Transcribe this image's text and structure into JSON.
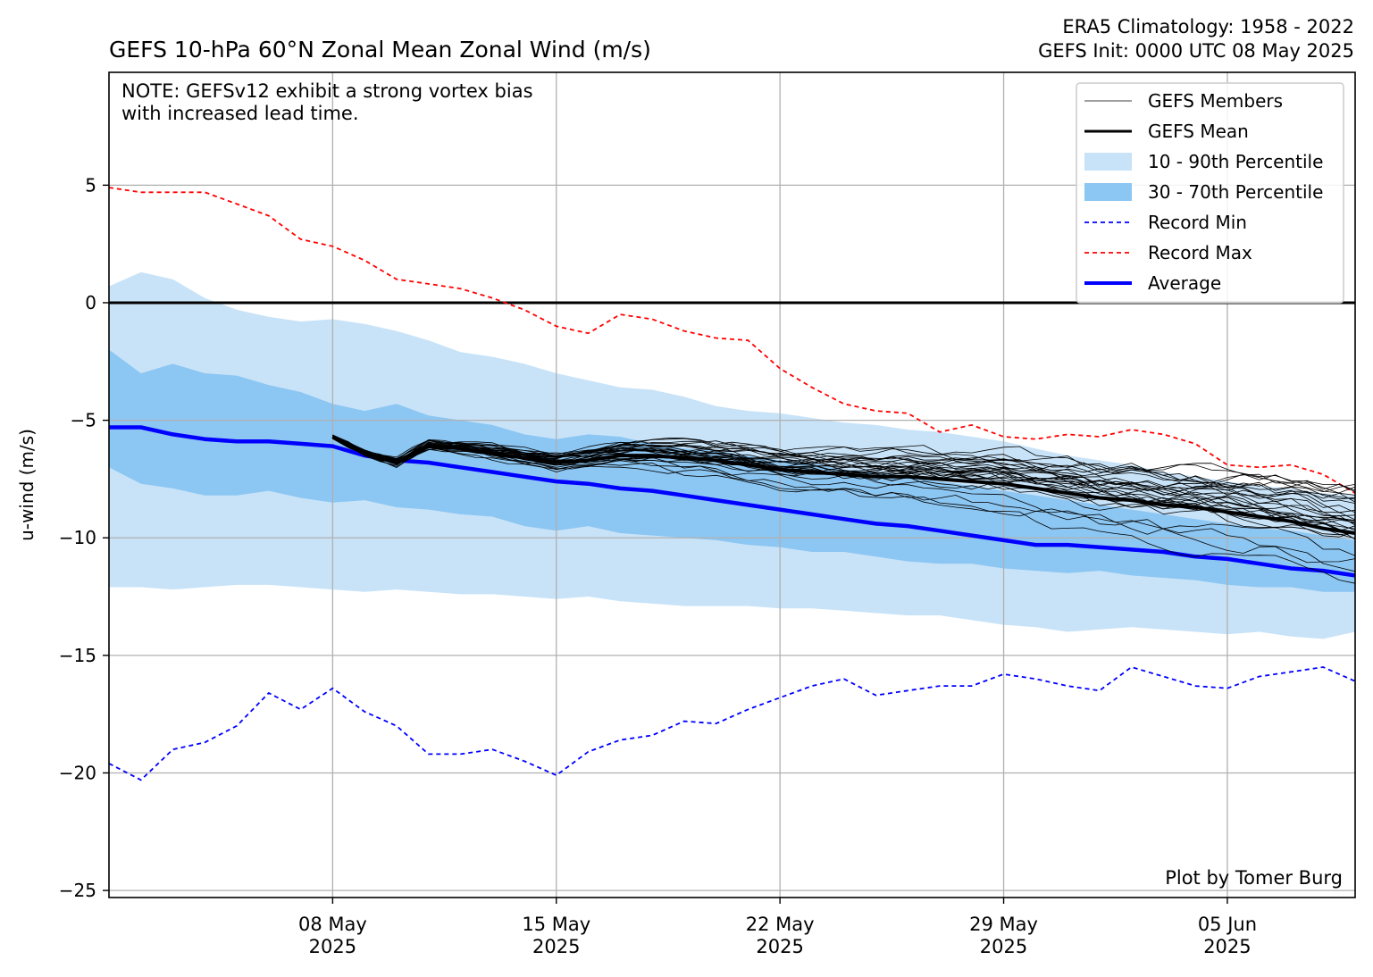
{
  "header": {
    "title": "GEFS 10-hPa 60°N Zonal Mean Zonal Wind (m/s)",
    "climatology": "ERA5 Climatology: 1958 - 2022",
    "init": "GEFS Init: 0000 UTC 08 May 2025"
  },
  "note": {
    "line1": "NOTE: GEFSv12 exhibit a strong vortex bias",
    "line2": "with increased lead time."
  },
  "credit": "Plot by Tomer Burg",
  "chart_data": {
    "type": "line",
    "ylabel": "u-wind (m/s)",
    "xlabel": "",
    "x_start": "2025-05-01",
    "x_end": "2025-06-09",
    "ylim": [
      -25.3,
      9.8
    ],
    "yticks": [
      5,
      0,
      -5,
      -10,
      -15,
      -20,
      -25
    ],
    "ytick_labels": [
      "5",
      "0",
      "−5",
      "−10",
      "−15",
      "−20",
      "−25"
    ],
    "xticks": [
      {
        "date": "2025-05-08",
        "line1": "08 May",
        "line2": "2025"
      },
      {
        "date": "2025-05-15",
        "line1": "15 May",
        "line2": "2025"
      },
      {
        "date": "2025-05-22",
        "line1": "22 May",
        "line2": "2025"
      },
      {
        "date": "2025-05-29",
        "line1": "29 May",
        "line2": "2025"
      },
      {
        "date": "2025-06-05",
        "line1": "05 Jun",
        "line2": "2025"
      }
    ],
    "grid": true,
    "zero_line": 0,
    "legend_position": "top-right",
    "legend": [
      {
        "label": "GEFS Members",
        "kind": "line",
        "color": "#000000",
        "width": 0.8,
        "dash": ""
      },
      {
        "label": "GEFS Mean",
        "kind": "line",
        "color": "#000000",
        "width": 3,
        "dash": ""
      },
      {
        "label": "10 - 90th Percentile",
        "kind": "patch",
        "color": "#c8e3f8"
      },
      {
        "label": "30 - 70th Percentile",
        "kind": "patch",
        "color": "#8cc6f2"
      },
      {
        "label": "Record Min",
        "kind": "line",
        "color": "#0000ff",
        "width": 1.8,
        "dash": "5,4"
      },
      {
        "label": "Record Max",
        "kind": "line",
        "color": "#ff0000",
        "width": 1.8,
        "dash": "5,4"
      },
      {
        "label": "Average",
        "kind": "line",
        "color": "#0000ff",
        "width": 4,
        "dash": ""
      }
    ],
    "colors": {
      "p10_90": "#c8e3f8",
      "p30_70": "#8cc6f2",
      "record_min": "#0000ff",
      "record_max": "#ff0000",
      "average": "#0000ff",
      "members": "#000000",
      "mean": "#000000"
    },
    "record_max": {
      "x": [
        "2025-05-01",
        "2025-05-02",
        "2025-05-03",
        "2025-05-04",
        "2025-05-05",
        "2025-05-06",
        "2025-05-07",
        "2025-05-08",
        "2025-05-09",
        "2025-05-10",
        "2025-05-11",
        "2025-05-12",
        "2025-05-13",
        "2025-05-14",
        "2025-05-15",
        "2025-05-16",
        "2025-05-17",
        "2025-05-18",
        "2025-05-19",
        "2025-05-20",
        "2025-05-21",
        "2025-05-22",
        "2025-05-23",
        "2025-05-24",
        "2025-05-25",
        "2025-05-26",
        "2025-05-27",
        "2025-05-28",
        "2025-05-29",
        "2025-05-30",
        "2025-05-31",
        "2025-06-01",
        "2025-06-02",
        "2025-06-03",
        "2025-06-04",
        "2025-06-05",
        "2025-06-06",
        "2025-06-07",
        "2025-06-08",
        "2025-06-09"
      ],
      "y": [
        4.9,
        4.7,
        4.7,
        4.7,
        4.2,
        3.7,
        2.7,
        2.4,
        1.8,
        1.0,
        0.8,
        0.6,
        0.2,
        -0.3,
        -1.0,
        -1.3,
        -0.5,
        -0.7,
        -1.2,
        -1.5,
        -1.6,
        -2.8,
        -3.6,
        -4.3,
        -4.6,
        -4.7,
        -5.5,
        -5.2,
        -5.7,
        -5.8,
        -5.6,
        -5.7,
        -5.4,
        -5.6,
        -6.0,
        -6.9,
        -7.0,
        -6.9,
        -7.3,
        -8.1
      ]
    },
    "record_min": {
      "x": [
        "2025-05-01",
        "2025-05-02",
        "2025-05-03",
        "2025-05-04",
        "2025-05-05",
        "2025-05-06",
        "2025-05-07",
        "2025-05-08",
        "2025-05-09",
        "2025-05-10",
        "2025-05-11",
        "2025-05-12",
        "2025-05-13",
        "2025-05-14",
        "2025-05-15",
        "2025-05-16",
        "2025-05-17",
        "2025-05-18",
        "2025-05-19",
        "2025-05-20",
        "2025-05-21",
        "2025-05-22",
        "2025-05-23",
        "2025-05-24",
        "2025-05-25",
        "2025-05-26",
        "2025-05-27",
        "2025-05-28",
        "2025-05-29",
        "2025-05-30",
        "2025-05-31",
        "2025-06-01",
        "2025-06-02",
        "2025-06-03",
        "2025-06-04",
        "2025-06-05",
        "2025-06-06",
        "2025-06-07",
        "2025-06-08",
        "2025-06-09"
      ],
      "y": [
        -19.6,
        -20.3,
        -19.0,
        -18.7,
        -18.0,
        -16.6,
        -17.3,
        -16.4,
        -17.4,
        -18.0,
        -19.2,
        -19.2,
        -19.0,
        -19.5,
        -20.1,
        -19.1,
        -18.6,
        -18.4,
        -17.8,
        -17.9,
        -17.3,
        -16.8,
        -16.3,
        -16.0,
        -16.7,
        -16.5,
        -16.3,
        -16.3,
        -15.8,
        -16.0,
        -16.3,
        -16.5,
        -15.5,
        -15.9,
        -16.3,
        -16.4,
        -15.9,
        -15.7,
        -15.5,
        -16.1
      ]
    },
    "average": {
      "x": [
        "2025-05-01",
        "2025-05-02",
        "2025-05-03",
        "2025-05-04",
        "2025-05-05",
        "2025-05-06",
        "2025-05-07",
        "2025-05-08",
        "2025-05-09",
        "2025-05-10",
        "2025-05-11",
        "2025-05-12",
        "2025-05-13",
        "2025-05-14",
        "2025-05-15",
        "2025-05-16",
        "2025-05-17",
        "2025-05-18",
        "2025-05-19",
        "2025-05-20",
        "2025-05-21",
        "2025-05-22",
        "2025-05-23",
        "2025-05-24",
        "2025-05-25",
        "2025-05-26",
        "2025-05-27",
        "2025-05-28",
        "2025-05-29",
        "2025-05-30",
        "2025-05-31",
        "2025-06-01",
        "2025-06-02",
        "2025-06-03",
        "2025-06-04",
        "2025-06-05",
        "2025-06-06",
        "2025-06-07",
        "2025-06-08",
        "2025-06-09"
      ],
      "y": [
        -5.3,
        -5.3,
        -5.6,
        -5.8,
        -5.9,
        -5.9,
        -6.0,
        -6.1,
        -6.5,
        -6.7,
        -6.8,
        -7.0,
        -7.2,
        -7.4,
        -7.6,
        -7.7,
        -7.9,
        -8.0,
        -8.2,
        -8.4,
        -8.6,
        -8.8,
        -9.0,
        -9.2,
        -9.4,
        -9.5,
        -9.7,
        -9.9,
        -10.1,
        -10.3,
        -10.3,
        -10.4,
        -10.5,
        -10.6,
        -10.8,
        -10.9,
        -11.1,
        -11.3,
        -11.4,
        -11.6
      ]
    },
    "p10_90": {
      "x": [
        "2025-05-01",
        "2025-05-02",
        "2025-05-03",
        "2025-05-04",
        "2025-05-05",
        "2025-05-06",
        "2025-05-07",
        "2025-05-08",
        "2025-05-09",
        "2025-05-10",
        "2025-05-11",
        "2025-05-12",
        "2025-05-13",
        "2025-05-14",
        "2025-05-15",
        "2025-05-16",
        "2025-05-17",
        "2025-05-18",
        "2025-05-19",
        "2025-05-20",
        "2025-05-21",
        "2025-05-22",
        "2025-05-23",
        "2025-05-24",
        "2025-05-25",
        "2025-05-26",
        "2025-05-27",
        "2025-05-28",
        "2025-05-29",
        "2025-05-30",
        "2025-05-31",
        "2025-06-01",
        "2025-06-02",
        "2025-06-03",
        "2025-06-04",
        "2025-06-05",
        "2025-06-06",
        "2025-06-07",
        "2025-06-08",
        "2025-06-09"
      ],
      "lower": [
        -12.1,
        -12.1,
        -12.2,
        -12.1,
        -12.0,
        -12.0,
        -12.1,
        -12.2,
        -12.3,
        -12.2,
        -12.3,
        -12.4,
        -12.4,
        -12.5,
        -12.6,
        -12.5,
        -12.7,
        -12.8,
        -12.9,
        -12.9,
        -12.9,
        -13.0,
        -13.0,
        -13.1,
        -13.2,
        -13.3,
        -13.3,
        -13.5,
        -13.7,
        -13.8,
        -14.0,
        -13.9,
        -13.8,
        -13.9,
        -14.0,
        -14.1,
        -14.0,
        -14.2,
        -14.3,
        -14.0
      ],
      "upper": [
        0.7,
        1.3,
        1.0,
        0.2,
        -0.3,
        -0.6,
        -0.8,
        -0.7,
        -0.9,
        -1.2,
        -1.6,
        -2.1,
        -2.3,
        -2.6,
        -3.0,
        -3.3,
        -3.6,
        -3.7,
        -4.0,
        -4.4,
        -4.6,
        -4.7,
        -4.9,
        -5.1,
        -5.2,
        -5.4,
        -5.5,
        -5.7,
        -5.9,
        -6.2,
        -6.5,
        -6.7,
        -6.9,
        -7.2,
        -7.4,
        -7.6,
        -7.8,
        -7.9,
        -8.1,
        -8.2
      ]
    },
    "p30_70": {
      "x": [
        "2025-05-01",
        "2025-05-02",
        "2025-05-03",
        "2025-05-04",
        "2025-05-05",
        "2025-05-06",
        "2025-05-07",
        "2025-05-08",
        "2025-05-09",
        "2025-05-10",
        "2025-05-11",
        "2025-05-12",
        "2025-05-13",
        "2025-05-14",
        "2025-05-15",
        "2025-05-16",
        "2025-05-17",
        "2025-05-18",
        "2025-05-19",
        "2025-05-20",
        "2025-05-21",
        "2025-05-22",
        "2025-05-23",
        "2025-05-24",
        "2025-05-25",
        "2025-05-26",
        "2025-05-27",
        "2025-05-28",
        "2025-05-29",
        "2025-05-30",
        "2025-05-31",
        "2025-06-01",
        "2025-06-02",
        "2025-06-03",
        "2025-06-04",
        "2025-06-05",
        "2025-06-06",
        "2025-06-07",
        "2025-06-08",
        "2025-06-09"
      ],
      "lower": [
        -7.0,
        -7.7,
        -7.9,
        -8.2,
        -8.2,
        -8.0,
        -8.3,
        -8.5,
        -8.4,
        -8.7,
        -8.8,
        -9.0,
        -9.1,
        -9.5,
        -9.7,
        -9.5,
        -9.8,
        -9.9,
        -10.0,
        -10.1,
        -10.3,
        -10.4,
        -10.6,
        -10.6,
        -10.8,
        -11.0,
        -11.1,
        -11.1,
        -11.3,
        -11.4,
        -11.5,
        -11.4,
        -11.6,
        -11.7,
        -11.8,
        -12.0,
        -12.1,
        -12.1,
        -12.3,
        -12.3
      ],
      "upper": [
        -2.0,
        -3.0,
        -2.6,
        -3.0,
        -3.1,
        -3.5,
        -3.8,
        -4.3,
        -4.6,
        -4.3,
        -4.8,
        -5.0,
        -5.2,
        -5.6,
        -5.8,
        -5.6,
        -5.7,
        -6.0,
        -6.2,
        -6.3,
        -6.5,
        -6.7,
        -6.8,
        -7.1,
        -7.2,
        -7.4,
        -7.6,
        -7.8,
        -8.0,
        -8.2,
        -8.4,
        -8.6,
        -8.8,
        -9.0,
        -9.2,
        -9.4,
        -9.6,
        -9.7,
        -9.9,
        -10.1
      ]
    },
    "gefs_mean": {
      "x": [
        "2025-05-08",
        "2025-05-09",
        "2025-05-10",
        "2025-05-11",
        "2025-05-12",
        "2025-05-13",
        "2025-05-14",
        "2025-05-15",
        "2025-05-16",
        "2025-05-17",
        "2025-05-18",
        "2025-05-19",
        "2025-05-20",
        "2025-05-21",
        "2025-05-22",
        "2025-05-23",
        "2025-05-24",
        "2025-05-25",
        "2025-05-26",
        "2025-05-27",
        "2025-05-28",
        "2025-05-29",
        "2025-05-30",
        "2025-05-31",
        "2025-06-01",
        "2025-06-02",
        "2025-06-03",
        "2025-06-04",
        "2025-06-05",
        "2025-06-06",
        "2025-06-07",
        "2025-06-08",
        "2025-06-09"
      ],
      "y": [
        -5.7,
        -6.4,
        -6.8,
        -6.1,
        -6.2,
        -6.4,
        -6.6,
        -6.8,
        -6.7,
        -6.5,
        -6.5,
        -6.6,
        -6.7,
        -6.9,
        -7.1,
        -7.2,
        -7.3,
        -7.4,
        -7.4,
        -7.5,
        -7.6,
        -7.7,
        -7.9,
        -8.1,
        -8.3,
        -8.4,
        -8.6,
        -8.7,
        -8.9,
        -9.1,
        -9.3,
        -9.6,
        -9.8
      ]
    },
    "gefs_members": {
      "x_start": "2025-05-08",
      "x_end": "2025-06-09",
      "step_days": 0.5,
      "count": 31,
      "spread_final_min": -12.6,
      "spread_final_max": -8.2
    }
  }
}
